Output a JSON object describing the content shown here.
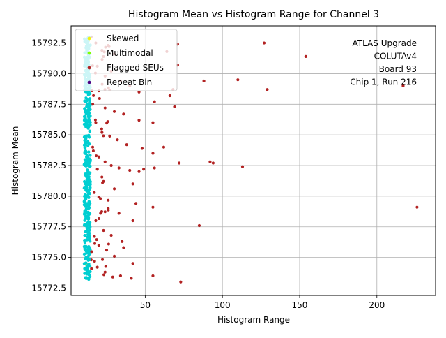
{
  "chart_data": {
    "type": "scatter",
    "title": "Histogram Mean vs Histogram Range for Channel 3",
    "xlabel": "Histogram Range",
    "ylabel": "Histogram Mean",
    "xlim": [
      2,
      238
    ],
    "ylim": [
      15771.9,
      15793.9
    ],
    "xticks": [
      50,
      100,
      150,
      200
    ],
    "yticks": [
      15772.5,
      15775.0,
      15777.5,
      15780.0,
      15782.5,
      15785.0,
      15787.5,
      15790.0,
      15792.5
    ],
    "ytick_labels": [
      "15772.5",
      "15775.0",
      "15777.5",
      "15780.0",
      "15782.5",
      "15785.0",
      "15787.5",
      "15790.0",
      "15792.5"
    ],
    "grid": true,
    "legend_position": "top-left",
    "annotation": [
      "ATLAS Upgrade",
      "COLUTAv4",
      "Board 93",
      "Chip 1, Run 216"
    ],
    "series": [
      {
        "name": "Skewed",
        "color": "#f2f20d",
        "points": [
          [
            12,
            15774.4
          ],
          [
            12.5,
            15774.2
          ],
          [
            13,
            15773.9
          ]
        ]
      },
      {
        "name": "Multimodal",
        "color": "#7fff00",
        "points": []
      },
      {
        "name": "Flagged SEUs",
        "color": "#b22222",
        "points": [
          [
            15,
            15793.0
          ],
          [
            18,
            15792.5
          ],
          [
            22,
            15791.9
          ],
          [
            26,
            15792.3
          ],
          [
            30,
            15791.6
          ],
          [
            19,
            15790.6
          ],
          [
            24,
            15789.8
          ],
          [
            28,
            15790.2
          ],
          [
            34,
            15789.4
          ],
          [
            40,
            15789.0
          ],
          [
            46,
            15788.5
          ],
          [
            20,
            15788.6
          ],
          [
            16,
            15787.5
          ],
          [
            24,
            15787.2
          ],
          [
            30,
            15786.9
          ],
          [
            36,
            15786.7
          ],
          [
            46,
            15786.2
          ],
          [
            55,
            15786.0
          ],
          [
            18,
            15786.0
          ],
          [
            22,
            15785.2
          ],
          [
            27,
            15784.9
          ],
          [
            32,
            15784.6
          ],
          [
            38,
            15784.2
          ],
          [
            48,
            15783.9
          ],
          [
            55,
            15783.5
          ],
          [
            62,
            15784.0
          ],
          [
            16,
            15784.0
          ],
          [
            20,
            15783.2
          ],
          [
            24,
            15782.8
          ],
          [
            28,
            15782.5
          ],
          [
            33,
            15782.3
          ],
          [
            40,
            15782.1
          ],
          [
            46,
            15782.0
          ],
          [
            49,
            15782.2
          ],
          [
            56,
            15782.3
          ],
          [
            19,
            15782.2
          ],
          [
            23,
            15781.2
          ],
          [
            30,
            15780.6
          ],
          [
            42,
            15781.0
          ],
          [
            17,
            15780.3
          ],
          [
            21,
            15779.8
          ],
          [
            26,
            15779.0
          ],
          [
            33,
            15778.6
          ],
          [
            44,
            15779.4
          ],
          [
            55,
            15779.1
          ],
          [
            18,
            15778.0
          ],
          [
            23,
            15777.2
          ],
          [
            28,
            15776.8
          ],
          [
            35,
            15776.3
          ],
          [
            42,
            15778.0
          ],
          [
            20,
            15776.0
          ],
          [
            25,
            15775.6
          ],
          [
            30,
            15775.1
          ],
          [
            36,
            15775.8
          ],
          [
            15,
            15774.8
          ],
          [
            19,
            15774.2
          ],
          [
            24,
            15773.8
          ],
          [
            29,
            15773.4
          ],
          [
            34,
            15773.5
          ],
          [
            42,
            15774.5
          ],
          [
            55,
            15773.5
          ],
          [
            73,
            15773.0
          ],
          [
            41,
            15773.3
          ],
          [
            56,
            15787.7
          ],
          [
            66,
            15788.2
          ],
          [
            68,
            15788.7
          ],
          [
            69,
            15787.3
          ],
          [
            64,
            15791.8
          ],
          [
            71,
            15790.7
          ],
          [
            71,
            15792.4
          ],
          [
            72,
            15782.7
          ],
          [
            88,
            15789.4
          ],
          [
            85,
            15777.6
          ],
          [
            92,
            15782.8
          ],
          [
            94,
            15782.7
          ],
          [
            110,
            15789.5
          ],
          [
            113,
            15782.4
          ],
          [
            127,
            15792.5
          ],
          [
            129,
            15788.7
          ],
          [
            154,
            15791.4
          ],
          [
            217,
            15789.0
          ],
          [
            226,
            15779.1
          ]
        ]
      },
      {
        "name": "Repeat Bin",
        "color": "#4b0082",
        "points": []
      },
      {
        "name": "",
        "color": "#00ced1",
        "role": "bulk",
        "x_range": [
          10.5,
          14.5
        ],
        "y_range": [
          15773.2,
          15793.0
        ]
      }
    ]
  }
}
